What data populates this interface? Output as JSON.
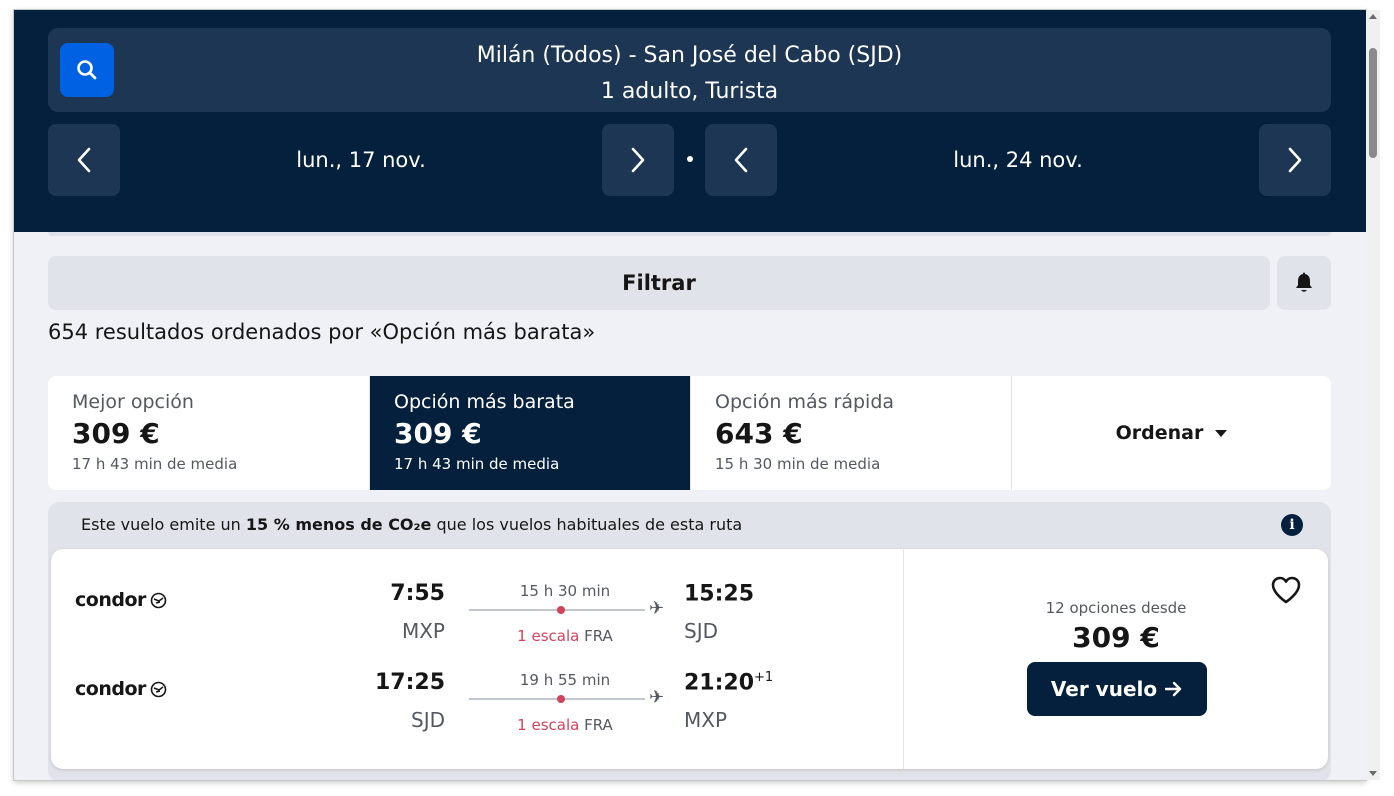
{
  "header": {
    "route": "Milán (Todos) - San José del Cabo (SJD)",
    "travellers": "1 adulto, Turista",
    "outbound_date": "lun., 17 nov.",
    "return_date": "lun., 24 nov."
  },
  "filter": {
    "label": "Filtrar"
  },
  "results": {
    "summary": "654 resultados ordenados por «Opción más barata»"
  },
  "sort_tabs": [
    {
      "label": "Mejor opción",
      "price": "309 €",
      "duration": "17 h 43 min de media"
    },
    {
      "label": "Opción más barata",
      "price": "309 €",
      "duration": "17 h 43 min de media"
    },
    {
      "label": "Opción más rápida",
      "price": "643 €",
      "duration": "15 h 30 min de media"
    }
  ],
  "sort_dropdown": {
    "label": "Ordenar"
  },
  "co2": {
    "prefix": "Este vuelo emite un ",
    "highlight": "15 % menos de CO₂e",
    "suffix": " que los vuelos habituales de esta ruta"
  },
  "flight": {
    "legs": [
      {
        "airline": "condor",
        "depart_time": "7:55",
        "depart_code": "MXP",
        "duration": "15 h 30 min",
        "stops": "1 escala",
        "stop_airport": "FRA",
        "arrive_time": "15:25",
        "arrive_code": "SJD",
        "day_offset": ""
      },
      {
        "airline": "condor",
        "depart_time": "17:25",
        "depart_code": "SJD",
        "duration": "19 h 55 min",
        "stops": "1 escala",
        "stop_airport": "FRA",
        "arrive_time": "21:20",
        "arrive_code": "MXP",
        "day_offset": "+1"
      }
    ],
    "options_text": "12 opciones desde",
    "price": "309 €",
    "cta_label": "Ver vuelo"
  },
  "colors": {
    "header_bg": "#05203c",
    "primary_blue": "#0062e3",
    "stops_red": "#d1435b"
  }
}
